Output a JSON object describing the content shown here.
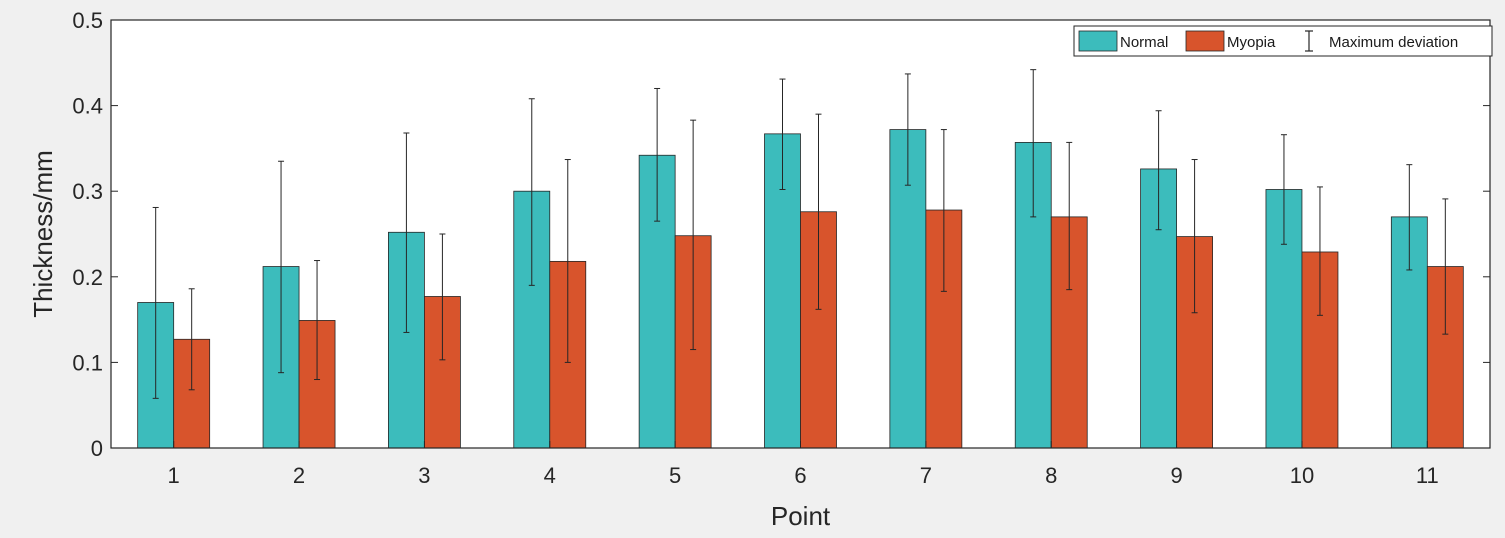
{
  "chart_data": {
    "type": "bar",
    "title": "",
    "xlabel": "Point",
    "ylabel": "Thickness/mm",
    "ylim": [
      0,
      0.5
    ],
    "yticks": [
      0,
      0.1,
      0.2,
      0.3,
      0.4,
      0.5
    ],
    "ytick_labels": [
      "0",
      "0.1",
      "0.2",
      "0.3",
      "0.4",
      "0.5"
    ],
    "categories": [
      "1",
      "2",
      "3",
      "4",
      "5",
      "6",
      "7",
      "8",
      "9",
      "10",
      "11"
    ],
    "grid": false,
    "legend_position": "top-right",
    "series": [
      {
        "name": "Normal",
        "color": "#3cbcbc",
        "values": [
          0.17,
          0.212,
          0.252,
          0.3,
          0.342,
          0.367,
          0.372,
          0.357,
          0.326,
          0.302,
          0.27
        ],
        "error_low": [
          0.058,
          0.088,
          0.135,
          0.19,
          0.265,
          0.302,
          0.307,
          0.27,
          0.255,
          0.238,
          0.208
        ],
        "error_high": [
          0.281,
          0.335,
          0.368,
          0.408,
          0.42,
          0.431,
          0.437,
          0.442,
          0.394,
          0.366,
          0.331
        ]
      },
      {
        "name": "Myopia",
        "color": "#d8542c",
        "values": [
          0.127,
          0.149,
          0.177,
          0.218,
          0.248,
          0.276,
          0.278,
          0.27,
          0.247,
          0.229,
          0.212
        ],
        "error_low": [
          0.068,
          0.08,
          0.103,
          0.1,
          0.115,
          0.162,
          0.183,
          0.185,
          0.158,
          0.155,
          0.133
        ],
        "error_high": [
          0.186,
          0.219,
          0.25,
          0.337,
          0.383,
          0.39,
          0.372,
          0.357,
          0.337,
          0.305,
          0.291
        ]
      }
    ],
    "legend_entries": [
      "Normal",
      "Myopia",
      "Maximum deviation"
    ]
  }
}
